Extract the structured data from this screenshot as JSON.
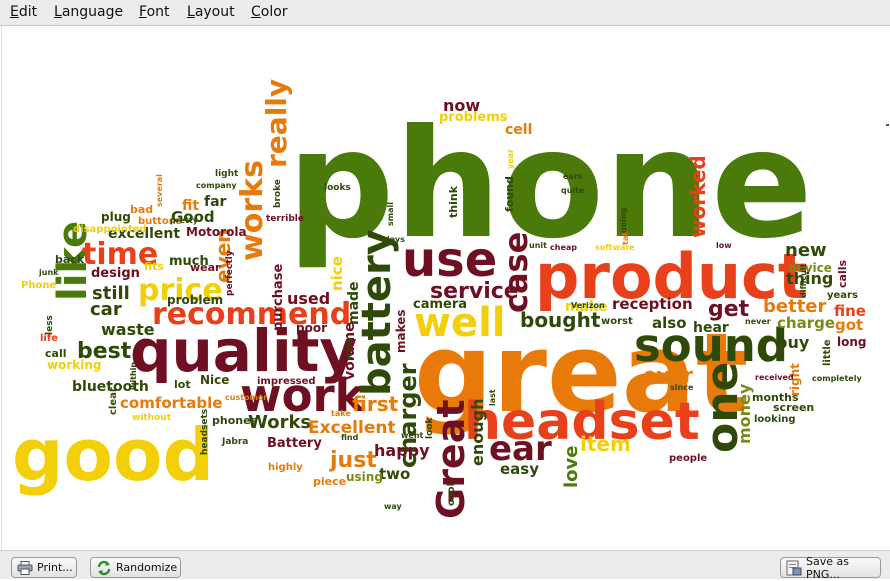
{
  "menubar": {
    "items": [
      "Edit",
      "Language",
      "Font",
      "Layout",
      "Color"
    ]
  },
  "buttons": {
    "print": "Print...",
    "randomize": "Randomize",
    "save": "Save as PNG..."
  },
  "icons": {
    "print": "printer-icon",
    "randomize": "refresh-icon",
    "save": "save-icon"
  },
  "colors": {
    "green": "#4a7a0a",
    "darkgreen": "#2f4a08",
    "maroon": "#6e0f22",
    "red": "#e8401a",
    "orange": "#e87a0a",
    "yellow": "#f2cf08",
    "olive": "#7a8a18"
  },
  "words": [
    {
      "t": "phone",
      "c": "green"
    },
    {
      "t": "great",
      "c": "orange"
    },
    {
      "t": "product",
      "c": "red"
    },
    {
      "t": "quality",
      "c": "maroon"
    },
    {
      "t": "good",
      "c": "yellow"
    },
    {
      "t": "headset",
      "c": "red"
    },
    {
      "t": "sound",
      "c": "darkgreen"
    },
    {
      "t": "work",
      "c": "maroon"
    },
    {
      "t": "use",
      "c": "maroon"
    },
    {
      "t": "well",
      "c": "yellow"
    },
    {
      "t": "battery",
      "c": "darkgreen"
    },
    {
      "t": "one",
      "c": "darkgreen"
    },
    {
      "t": "Great",
      "c": "maroon"
    },
    {
      "t": "ear",
      "c": "maroon"
    },
    {
      "t": "recommend",
      "c": "red"
    },
    {
      "t": "like",
      "c": "green"
    },
    {
      "t": "works",
      "c": "orange"
    },
    {
      "t": "price",
      "c": "yellow"
    },
    {
      "t": "time",
      "c": "red"
    },
    {
      "t": "case",
      "c": "maroon"
    },
    {
      "t": "really",
      "c": "orange"
    },
    {
      "t": "service",
      "c": "maroon"
    },
    {
      "t": "charger",
      "c": "darkgreen"
    },
    {
      "t": "get",
      "c": "maroon"
    },
    {
      "t": "worked",
      "c": "red"
    },
    {
      "t": "item",
      "c": "yellow"
    },
    {
      "t": "best",
      "c": "darkgreen"
    },
    {
      "t": "bought",
      "c": "darkgreen"
    },
    {
      "t": "even",
      "c": "orange"
    },
    {
      "t": "ever",
      "c": "orange"
    },
    {
      "t": "just",
      "c": "orange"
    },
    {
      "t": "new",
      "c": "darkgreen"
    },
    {
      "t": "first",
      "c": "orange"
    },
    {
      "t": "Works",
      "c": "darkgreen"
    },
    {
      "t": "used",
      "c": "maroon"
    },
    {
      "t": "money",
      "c": "olive"
    },
    {
      "t": "better",
      "c": "orange"
    },
    {
      "t": "love",
      "c": "green"
    },
    {
      "t": "Excellent",
      "c": "orange"
    },
    {
      "t": "car",
      "c": "darkgreen"
    },
    {
      "t": "still",
      "c": "darkgreen"
    },
    {
      "t": "waste",
      "c": "darkgreen"
    },
    {
      "t": "comfortable",
      "c": "orange"
    },
    {
      "t": "happy",
      "c": "maroon"
    },
    {
      "t": "two",
      "c": "darkgreen"
    },
    {
      "t": "easy",
      "c": "darkgreen"
    },
    {
      "t": "buy",
      "c": "darkgreen"
    },
    {
      "t": "reception",
      "c": "maroon"
    },
    {
      "t": "enough",
      "c": "darkgreen"
    },
    {
      "t": "thing",
      "c": "darkgreen"
    },
    {
      "t": "charge",
      "c": "olive"
    },
    {
      "t": "also",
      "c": "darkgreen"
    },
    {
      "t": "made",
      "c": "darkgreen"
    },
    {
      "t": "volume",
      "c": "maroon"
    },
    {
      "t": "now",
      "c": "maroon"
    },
    {
      "t": "fine",
      "c": "red"
    },
    {
      "t": "got",
      "c": "orange"
    },
    {
      "t": "nice",
      "c": "yellow"
    },
    {
      "t": "make",
      "c": "yellow"
    },
    {
      "t": "cell",
      "c": "orange"
    },
    {
      "t": "purchase",
      "c": "maroon"
    },
    {
      "t": "hear",
      "c": "darkgreen"
    },
    {
      "t": "bluetooth",
      "c": "darkgreen"
    },
    {
      "t": "Good",
      "c": "darkgreen"
    },
    {
      "t": "problems",
      "c": "yellow"
    },
    {
      "t": "Battery",
      "c": "maroon"
    },
    {
      "t": "excellent",
      "c": "darkgreen"
    },
    {
      "t": "fit",
      "c": "orange"
    },
    {
      "t": "far",
      "c": "darkgreen"
    },
    {
      "t": "design",
      "c": "maroon"
    },
    {
      "t": "much",
      "c": "darkgreen"
    },
    {
      "t": "device",
      "c": "olive"
    },
    {
      "t": "makes",
      "c": "maroon"
    },
    {
      "t": "camera",
      "c": "darkgreen"
    },
    {
      "t": "poor",
      "c": "maroon"
    },
    {
      "t": "months",
      "c": "darkgreen"
    },
    {
      "t": "working",
      "c": "yellow"
    },
    {
      "t": "call",
      "c": "darkgreen"
    },
    {
      "t": "right",
      "c": "orange"
    },
    {
      "t": "long",
      "c": "maroon"
    },
    {
      "t": "calls",
      "c": "maroon"
    },
    {
      "t": "screen",
      "c": "darkgreen"
    },
    {
      "t": "think",
      "c": "darkgreen"
    },
    {
      "t": "problem",
      "c": "darkgreen"
    },
    {
      "t": "Motorola",
      "c": "maroon"
    },
    {
      "t": "plug",
      "c": "darkgreen"
    },
    {
      "t": "bad",
      "c": "orange"
    },
    {
      "t": "fits",
      "c": "yellow"
    },
    {
      "t": "wear",
      "c": "maroon"
    },
    {
      "t": "lot",
      "c": "darkgreen"
    },
    {
      "t": "Nice",
      "c": "darkgreen"
    },
    {
      "t": "using",
      "c": "olive"
    },
    {
      "t": "piece",
      "c": "orange"
    },
    {
      "t": "found",
      "c": "darkgreen"
    },
    {
      "t": "worst",
      "c": "darkgreen"
    },
    {
      "t": "years",
      "c": "darkgreen"
    },
    {
      "t": "looking",
      "c": "darkgreen"
    },
    {
      "t": "people",
      "c": "maroon"
    },
    {
      "t": "little",
      "c": "darkgreen"
    },
    {
      "t": "back",
      "c": "darkgreen"
    },
    {
      "t": "Phone",
      "c": "yellow"
    },
    {
      "t": "life",
      "c": "red"
    },
    {
      "t": "clear",
      "c": "darkgreen"
    },
    {
      "t": "phones",
      "c": "darkgreen"
    },
    {
      "t": "cool",
      "c": "darkgreen"
    },
    {
      "t": "highly",
      "c": "orange"
    },
    {
      "t": "impressed",
      "c": "maroon"
    },
    {
      "t": "disappointed",
      "c": "yellow"
    },
    {
      "t": "buttons",
      "c": "orange"
    },
    {
      "t": "pretty",
      "c": "darkgreen"
    },
    {
      "t": "looks",
      "c": "darkgreen"
    },
    {
      "t": "company",
      "c": "darkgreen"
    },
    {
      "t": "light",
      "c": "darkgreen"
    },
    {
      "t": "several",
      "c": "orange"
    },
    {
      "t": "broke",
      "c": "darkgreen"
    },
    {
      "t": "terrible",
      "c": "maroon"
    },
    {
      "t": "junk",
      "c": "darkgreen"
    },
    {
      "t": "less",
      "c": "darkgreen"
    },
    {
      "t": "within",
      "c": "darkgreen"
    },
    {
      "t": "without",
      "c": "yellow"
    },
    {
      "t": "headsets",
      "c": "darkgreen"
    },
    {
      "t": "Jabra",
      "c": "darkgreen"
    },
    {
      "t": "perfectly",
      "c": "maroon"
    },
    {
      "t": "customer",
      "c": "orange"
    },
    {
      "t": "take",
      "c": "orange"
    },
    {
      "t": "find",
      "c": "darkgreen"
    },
    {
      "t": "want",
      "c": "darkgreen"
    },
    {
      "t": "went",
      "c": "darkgreen"
    },
    {
      "t": "look",
      "c": "darkgreen"
    },
    {
      "t": "way",
      "c": "darkgreen"
    },
    {
      "t": "last",
      "c": "darkgreen"
    },
    {
      "t": "since",
      "c": "darkgreen"
    },
    {
      "t": "received",
      "c": "maroon"
    },
    {
      "t": "completely",
      "c": "darkgreen"
    },
    {
      "t": "never",
      "c": "darkgreen"
    },
    {
      "t": "difficult",
      "c": "darkgreen"
    },
    {
      "t": "low",
      "c": "maroon"
    },
    {
      "t": "talk",
      "c": "orange"
    },
    {
      "t": "software",
      "c": "yellow"
    },
    {
      "t": "going",
      "c": "darkgreen"
    },
    {
      "t": "cheap",
      "c": "maroon"
    },
    {
      "t": "Verizon",
      "c": "darkgreen"
    },
    {
      "t": "unit",
      "c": "darkgreen"
    },
    {
      "t": "ears",
      "c": "darkgreen"
    },
    {
      "t": "quite",
      "c": "darkgreen"
    },
    {
      "t": "year",
      "c": "yellow"
    },
    {
      "t": "small",
      "c": "darkgreen"
    },
    {
      "t": "days",
      "c": "darkgreen"
    },
    {
      "t": "put",
      "c": "orange"
    }
  ]
}
